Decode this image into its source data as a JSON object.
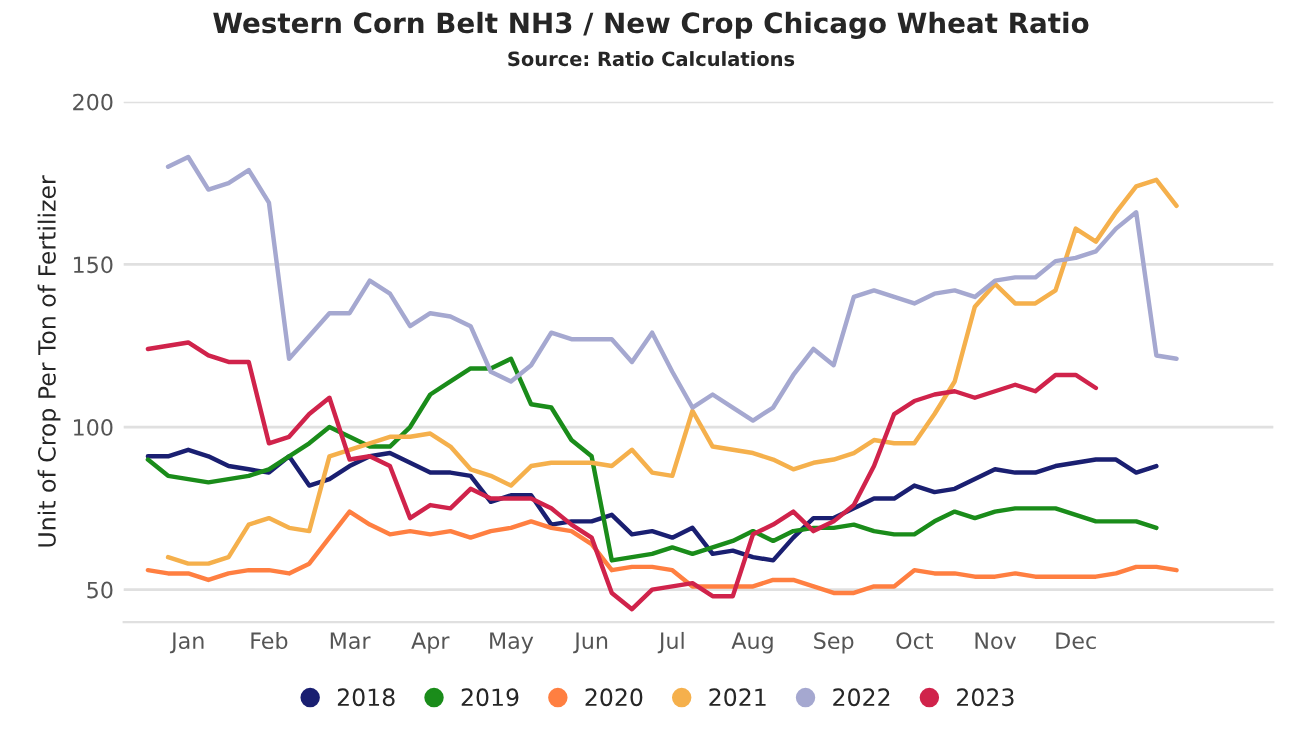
{
  "chart_data": {
    "type": "line",
    "title": "Western Corn Belt NH3 / New Crop Chicago Wheat Ratio",
    "subtitle": "Source: Ratio Calculations",
    "ylabel": "Unit of Crop Per Ton of Fertilizer",
    "categories": [
      null,
      null,
      "Jan",
      null,
      null,
      null,
      "Feb",
      null,
      null,
      null,
      "Mar",
      null,
      null,
      null,
      "Apr",
      null,
      null,
      null,
      "May",
      null,
      null,
      null,
      "Jun",
      null,
      null,
      null,
      "Jul",
      null,
      null,
      null,
      "Aug",
      null,
      null,
      null,
      "Sep",
      null,
      null,
      null,
      "Oct",
      null,
      null,
      null,
      "Nov",
      null,
      null,
      null,
      "Dec",
      null,
      null,
      null,
      null,
      null
    ],
    "series": [
      {
        "name": "2018",
        "color": "#1a1f71",
        "values": [
          91,
          91,
          93,
          91,
          88,
          87,
          86,
          91,
          82,
          84,
          88,
          91,
          92,
          89,
          86,
          86,
          85,
          77,
          79,
          79,
          70,
          71,
          71,
          73,
          67,
          68,
          66,
          69,
          61,
          62,
          60,
          59,
          66,
          72,
          72,
          75,
          78,
          78,
          82,
          80,
          81,
          84,
          87,
          86,
          86,
          88,
          89,
          90,
          90,
          86,
          88,
          null
        ]
      },
      {
        "name": "2019",
        "color": "#1a8c1a",
        "values": [
          90,
          85,
          84,
          83,
          84,
          85,
          87,
          91,
          95,
          100,
          97,
          94,
          94,
          100,
          110,
          114,
          118,
          118,
          121,
          107,
          106,
          96,
          91,
          59,
          60,
          61,
          63,
          61,
          63,
          65,
          68,
          65,
          68,
          69,
          69,
          70,
          68,
          67,
          67,
          71,
          74,
          72,
          74,
          75,
          75,
          75,
          73,
          71,
          71,
          71,
          69,
          null
        ]
      },
      {
        "name": "2020",
        "color": "#ff7f41",
        "values": [
          56,
          55,
          55,
          53,
          55,
          56,
          56,
          55,
          58,
          66,
          74,
          70,
          67,
          68,
          67,
          68,
          66,
          68,
          69,
          71,
          69,
          68,
          64,
          56,
          57,
          57,
          56,
          51,
          51,
          51,
          51,
          53,
          53,
          51,
          49,
          49,
          51,
          51,
          56,
          55,
          55,
          54,
          54,
          55,
          54,
          54,
          54,
          54,
          55,
          57,
          57,
          56
        ]
      },
      {
        "name": "2021",
        "color": "#f5b04c",
        "values": [
          null,
          60,
          58,
          58,
          60,
          70,
          72,
          69,
          68,
          91,
          93,
          95,
          97,
          97,
          98,
          94,
          87,
          85,
          82,
          88,
          89,
          89,
          89,
          88,
          93,
          86,
          85,
          105,
          94,
          93,
          92,
          90,
          87,
          89,
          90,
          92,
          96,
          95,
          95,
          104,
          114,
          137,
          144,
          138,
          138,
          142,
          161,
          157,
          166,
          174,
          176,
          168
        ]
      },
      {
        "name": "2022",
        "color": "#a5a8d0",
        "values": [
          null,
          180,
          183,
          173,
          175,
          179,
          169,
          121,
          128,
          135,
          135,
          145,
          141,
          131,
          135,
          134,
          131,
          117,
          114,
          119,
          129,
          127,
          127,
          127,
          120,
          129,
          117,
          106,
          110,
          106,
          102,
          106,
          116,
          124,
          119,
          140,
          142,
          140,
          138,
          141,
          142,
          140,
          145,
          146,
          146,
          151,
          152,
          154,
          161,
          166,
          122,
          121
        ]
      },
      {
        "name": "2023",
        "color": "#d0234b",
        "values": [
          124,
          125,
          126,
          122,
          120,
          120,
          95,
          97,
          104,
          109,
          90,
          91,
          88,
          72,
          76,
          75,
          81,
          78,
          78,
          78,
          75,
          70,
          66,
          49,
          44,
          50,
          51,
          52,
          48,
          48,
          67,
          70,
          74,
          68,
          71,
          76,
          88,
          104,
          108,
          110,
          111,
          109,
          111,
          113,
          111,
          116,
          116,
          112,
          null,
          null,
          null,
          null
        ]
      }
    ],
    "ylim": [
      40,
      200
    ],
    "yticks": [
      50,
      100,
      150,
      200
    ],
    "grid": "y",
    "legend": "bottom",
    "marker": "none",
    "line_style": "solid"
  }
}
